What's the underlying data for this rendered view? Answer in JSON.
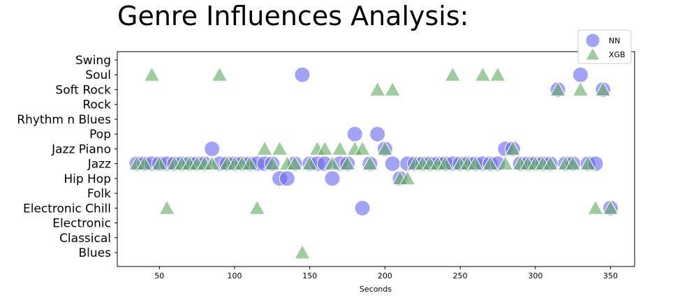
{
  "chart_data": {
    "type": "scatter",
    "title": "Genre Influences Analysis:",
    "xlabel": "Seconds",
    "ylabel": "",
    "xlim": [
      22,
      366
    ],
    "x_ticks": [
      50,
      100,
      150,
      200,
      250,
      300,
      350
    ],
    "x_tick_labels": [
      "50",
      "100",
      "150",
      "200",
      "250",
      "300",
      "350"
    ],
    "categories": [
      "Blues",
      "Classical",
      "Electronic",
      "Electronic Chill",
      "Folk",
      "Hip Hop",
      "Jazz",
      "Jazz Piano",
      "Pop",
      "Rhythm n Blues",
      "Rock",
      "Soft Rock",
      "Soul",
      "Swing"
    ],
    "grid": false,
    "legend_position": "top-right",
    "colors": {
      "NN": "#6666ee",
      "XGB": "#5fa85f"
    },
    "series": [
      {
        "name": "NN",
        "marker": "circle",
        "points": [
          [
            35,
            "Jazz"
          ],
          [
            40,
            "Jazz"
          ],
          [
            45,
            "Jazz"
          ],
          [
            50,
            "Jazz"
          ],
          [
            55,
            "Jazz"
          ],
          [
            60,
            "Jazz"
          ],
          [
            65,
            "Jazz"
          ],
          [
            70,
            "Jazz"
          ],
          [
            75,
            "Jazz"
          ],
          [
            80,
            "Jazz"
          ],
          [
            85,
            "Jazz Piano"
          ],
          [
            90,
            "Jazz"
          ],
          [
            95,
            "Jazz"
          ],
          [
            100,
            "Jazz"
          ],
          [
            105,
            "Jazz"
          ],
          [
            110,
            "Jazz"
          ],
          [
            115,
            "Jazz"
          ],
          [
            120,
            "Jazz"
          ],
          [
            125,
            "Jazz"
          ],
          [
            130,
            "Hip Hop"
          ],
          [
            135,
            "Hip Hop"
          ],
          [
            140,
            "Jazz"
          ],
          [
            145,
            "Soul"
          ],
          [
            150,
            "Jazz"
          ],
          [
            155,
            "Jazz"
          ],
          [
            160,
            "Jazz"
          ],
          [
            165,
            "Hip Hop"
          ],
          [
            170,
            "Jazz"
          ],
          [
            175,
            "Jazz"
          ],
          [
            180,
            "Pop"
          ],
          [
            185,
            "Electronic Chill"
          ],
          [
            190,
            "Jazz"
          ],
          [
            195,
            "Pop"
          ],
          [
            200,
            "Jazz Piano"
          ],
          [
            205,
            "Jazz"
          ],
          [
            210,
            "Hip Hop"
          ],
          [
            215,
            "Jazz"
          ],
          [
            220,
            "Jazz"
          ],
          [
            225,
            "Jazz"
          ],
          [
            230,
            "Jazz"
          ],
          [
            235,
            "Jazz"
          ],
          [
            240,
            "Jazz"
          ],
          [
            245,
            "Jazz"
          ],
          [
            250,
            "Jazz"
          ],
          [
            255,
            "Jazz"
          ],
          [
            260,
            "Jazz"
          ],
          [
            265,
            "Jazz"
          ],
          [
            270,
            "Jazz"
          ],
          [
            275,
            "Jazz"
          ],
          [
            280,
            "Jazz Piano"
          ],
          [
            285,
            "Jazz Piano"
          ],
          [
            290,
            "Jazz"
          ],
          [
            295,
            "Jazz"
          ],
          [
            300,
            "Jazz"
          ],
          [
            305,
            "Jazz"
          ],
          [
            310,
            "Jazz"
          ],
          [
            315,
            "Soft Rock"
          ],
          [
            320,
            "Jazz"
          ],
          [
            325,
            "Jazz"
          ],
          [
            330,
            "Soul"
          ],
          [
            335,
            "Jazz"
          ],
          [
            340,
            "Jazz"
          ],
          [
            345,
            "Soft Rock"
          ],
          [
            350,
            "Electronic Chill"
          ]
        ]
      },
      {
        "name": "XGB",
        "marker": "triangle",
        "points": [
          [
            35,
            "Jazz"
          ],
          [
            40,
            "Jazz"
          ],
          [
            45,
            "Soul"
          ],
          [
            50,
            "Jazz"
          ],
          [
            55,
            "Electronic Chill"
          ],
          [
            60,
            "Jazz"
          ],
          [
            65,
            "Jazz"
          ],
          [
            70,
            "Jazz"
          ],
          [
            75,
            "Jazz"
          ],
          [
            80,
            "Jazz"
          ],
          [
            85,
            "Jazz"
          ],
          [
            90,
            "Soul"
          ],
          [
            95,
            "Jazz"
          ],
          [
            100,
            "Jazz"
          ],
          [
            105,
            "Jazz"
          ],
          [
            110,
            "Jazz"
          ],
          [
            115,
            "Electronic Chill"
          ],
          [
            120,
            "Jazz Piano"
          ],
          [
            125,
            "Jazz"
          ],
          [
            130,
            "Jazz Piano"
          ],
          [
            135,
            "Jazz"
          ],
          [
            140,
            "Jazz"
          ],
          [
            145,
            "Blues"
          ],
          [
            150,
            "Jazz"
          ],
          [
            155,
            "Jazz Piano"
          ],
          [
            160,
            "Jazz Piano"
          ],
          [
            165,
            "Jazz"
          ],
          [
            170,
            "Jazz Piano"
          ],
          [
            175,
            "Jazz"
          ],
          [
            180,
            "Jazz Piano"
          ],
          [
            185,
            "Jazz Piano"
          ],
          [
            190,
            "Jazz"
          ],
          [
            195,
            "Soft Rock"
          ],
          [
            200,
            "Jazz Piano"
          ],
          [
            205,
            "Soft Rock"
          ],
          [
            210,
            "Hip Hop"
          ],
          [
            215,
            "Hip Hop"
          ],
          [
            220,
            "Jazz"
          ],
          [
            225,
            "Jazz"
          ],
          [
            230,
            "Jazz"
          ],
          [
            235,
            "Jazz"
          ],
          [
            240,
            "Jazz"
          ],
          [
            245,
            "Soul"
          ],
          [
            250,
            "Jazz"
          ],
          [
            255,
            "Jazz"
          ],
          [
            260,
            "Jazz"
          ],
          [
            265,
            "Soul"
          ],
          [
            270,
            "Jazz"
          ],
          [
            275,
            "Soul"
          ],
          [
            280,
            "Jazz"
          ],
          [
            285,
            "Jazz Piano"
          ],
          [
            290,
            "Jazz"
          ],
          [
            295,
            "Jazz"
          ],
          [
            300,
            "Jazz"
          ],
          [
            305,
            "Jazz"
          ],
          [
            310,
            "Jazz"
          ],
          [
            315,
            "Soft Rock"
          ],
          [
            320,
            "Jazz"
          ],
          [
            325,
            "Jazz"
          ],
          [
            330,
            "Soft Rock"
          ],
          [
            335,
            "Jazz"
          ],
          [
            340,
            "Electronic Chill"
          ],
          [
            345,
            "Soft Rock"
          ],
          [
            350,
            "Electronic Chill"
          ]
        ]
      }
    ]
  }
}
